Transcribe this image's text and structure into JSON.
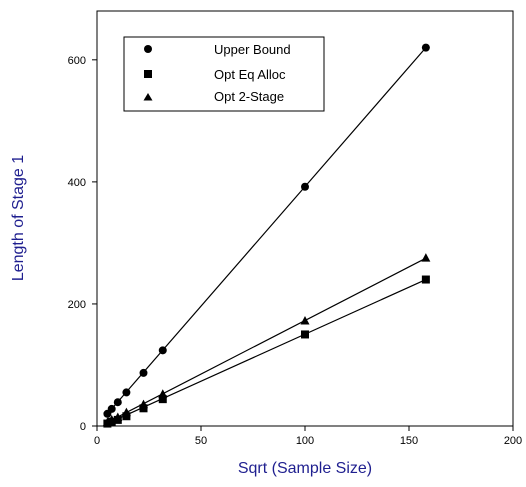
{
  "chart_data": {
    "type": "scatter",
    "title": "",
    "xlabel": "Sqrt (Sample Size)",
    "ylabel": "Length of Stage 1",
    "xlim": [
      0,
      200
    ],
    "ylim": [
      0,
      680
    ],
    "x_ticks": [
      0,
      50,
      100,
      150,
      200
    ],
    "y_ticks": [
      0,
      200,
      400,
      600
    ],
    "grid": false,
    "legend_position": "top-left",
    "series": [
      {
        "name": "Upper Bound",
        "marker": "circle",
        "x": [
          5,
          7.07,
          10,
          14.14,
          22.36,
          31.62,
          100,
          158.11
        ],
        "y": [
          20,
          28,
          39,
          55,
          87,
          124,
          392,
          620
        ],
        "fit": [
          [
            5,
            20
          ],
          [
            158.11,
            620
          ]
        ]
      },
      {
        "name": "Opt Eq Alloc",
        "marker": "square",
        "x": [
          5,
          7.07,
          10,
          14.14,
          22.36,
          31.62,
          100,
          158.11
        ],
        "y": [
          4,
          7,
          10,
          16,
          29,
          44,
          150,
          240
        ],
        "fit": [
          [
            5,
            4
          ],
          [
            158.11,
            240
          ]
        ]
      },
      {
        "name": "Opt 2-Stage",
        "marker": "triangle",
        "x": [
          5,
          7.07,
          10,
          14.14,
          22.36,
          31.62,
          100,
          158.11
        ],
        "y": [
          6,
          10,
          14,
          22,
          35,
          52,
          172,
          275
        ],
        "fit": [
          [
            5,
            6
          ],
          [
            158.11,
            275
          ]
        ]
      }
    ]
  },
  "colors": {
    "axis_title": "#1f1f8f",
    "marks": "#000000",
    "background": "#ffffff"
  }
}
